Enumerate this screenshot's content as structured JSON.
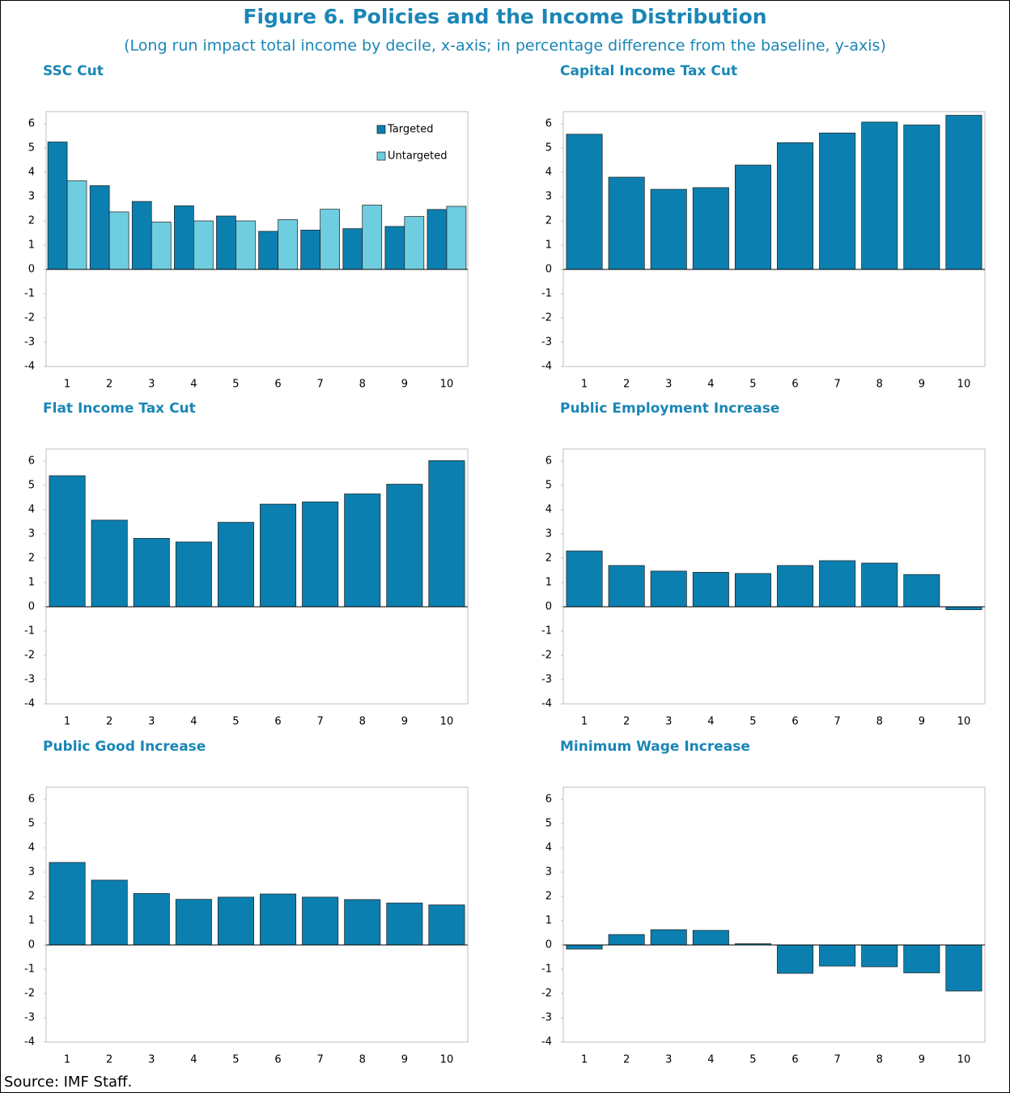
{
  "title": "Figure 6. Policies and the Income Distribution",
  "subtitle": "(Long run impact total income by decile, x-axis; in percentage difference from the baseline, y-axis)",
  "source": "Source: IMF Staff.",
  "chart_data": [
    {
      "type": "bar",
      "title": "SSC Cut",
      "categories": [
        "1",
        "2",
        "3",
        "4",
        "5",
        "6",
        "7",
        "8",
        "9",
        "10"
      ],
      "series": [
        {
          "name": "Targeted",
          "color": "#0b80b0",
          "values": [
            5.25,
            3.45,
            2.8,
            2.62,
            2.2,
            1.57,
            1.62,
            1.68,
            1.77,
            2.47
          ]
        },
        {
          "name": "Untargeted",
          "color": "#6fcde0",
          "values": [
            3.65,
            2.37,
            1.95,
            2.0,
            2.0,
            2.05,
            2.48,
            2.65,
            2.18,
            2.6
          ]
        }
      ],
      "ylim": [
        -4,
        6.5
      ],
      "yticks": [
        -4,
        -3,
        -2,
        -1,
        0,
        1,
        2,
        3,
        4,
        5,
        6
      ],
      "legend": "upper right"
    },
    {
      "type": "bar",
      "title": "Capital Income Tax Cut",
      "categories": [
        "1",
        "2",
        "3",
        "4",
        "5",
        "6",
        "7",
        "8",
        "9",
        "10"
      ],
      "values": [
        5.57,
        3.8,
        3.3,
        3.37,
        4.3,
        5.22,
        5.62,
        6.07,
        5.95,
        6.35
      ],
      "color": "#0b80b0",
      "ylim": [
        -4,
        6.5
      ],
      "yticks": [
        -4,
        -3,
        -2,
        -1,
        0,
        1,
        2,
        3,
        4,
        5,
        6
      ]
    },
    {
      "type": "bar",
      "title": "Flat Income Tax Cut",
      "categories": [
        "1",
        "2",
        "3",
        "4",
        "5",
        "6",
        "7",
        "8",
        "9",
        "10"
      ],
      "values": [
        5.4,
        3.57,
        2.82,
        2.67,
        3.48,
        4.23,
        4.32,
        4.65,
        5.05,
        6.02
      ],
      "color": "#0b80b0",
      "ylim": [
        -4,
        6.5
      ],
      "yticks": [
        -4,
        -3,
        -2,
        -1,
        0,
        1,
        2,
        3,
        4,
        5,
        6
      ]
    },
    {
      "type": "bar",
      "title": "Public Employment Increase",
      "categories": [
        "1",
        "2",
        "3",
        "4",
        "5",
        "6",
        "7",
        "8",
        "9",
        "10"
      ],
      "values": [
        2.3,
        1.7,
        1.47,
        1.42,
        1.37,
        1.7,
        1.9,
        1.8,
        1.33,
        -0.12
      ],
      "color": "#0b80b0",
      "ylim": [
        -4,
        6.5
      ],
      "yticks": [
        -4,
        -3,
        -2,
        -1,
        0,
        1,
        2,
        3,
        4,
        5,
        6
      ]
    },
    {
      "type": "bar",
      "title": "Public Good Increase",
      "categories": [
        "1",
        "2",
        "3",
        "4",
        "5",
        "6",
        "7",
        "8",
        "9",
        "10"
      ],
      "values": [
        3.4,
        2.67,
        2.12,
        1.88,
        1.97,
        2.1,
        1.97,
        1.87,
        1.73,
        1.65
      ],
      "color": "#0b80b0",
      "ylim": [
        -4,
        6.5
      ],
      "yticks": [
        -4,
        -3,
        -2,
        -1,
        0,
        1,
        2,
        3,
        4,
        5,
        6
      ]
    },
    {
      "type": "bar",
      "title": "Minimum Wage Increase",
      "categories": [
        "1",
        "2",
        "3",
        "4",
        "5",
        "6",
        "7",
        "8",
        "9",
        "10"
      ],
      "values": [
        -0.17,
        0.43,
        0.63,
        0.6,
        0.05,
        -1.17,
        -0.87,
        -0.9,
        -1.15,
        -1.9
      ],
      "color": "#0b80b0",
      "ylim": [
        -4,
        6.5
      ],
      "yticks": [
        -4,
        -3,
        -2,
        -1,
        0,
        1,
        2,
        3,
        4,
        5,
        6
      ]
    }
  ]
}
